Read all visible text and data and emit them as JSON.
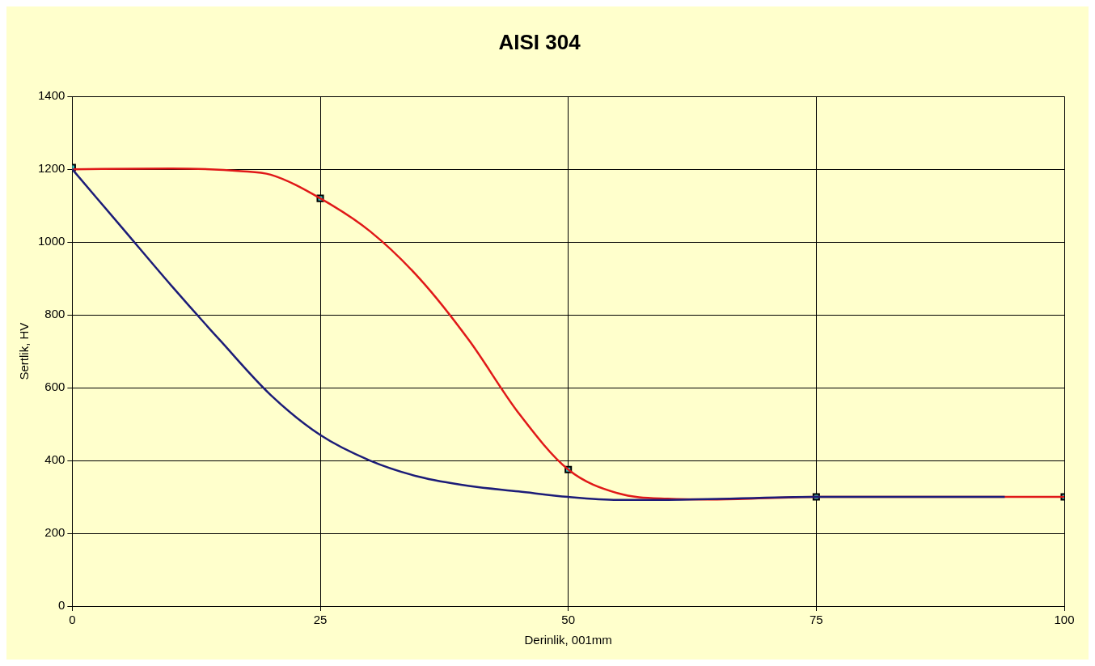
{
  "chart_data": {
    "type": "line",
    "title": "AISI 304",
    "xlabel": "Derinlik, 001mm",
    "ylabel": "Sertlik, HV",
    "xlim": [
      0,
      100
    ],
    "xticks": [
      0,
      25,
      50,
      75,
      100
    ],
    "ylim": [
      0,
      1400
    ],
    "yticks": [
      0,
      200,
      400,
      600,
      800,
      1000,
      1200,
      1400
    ],
    "grid": true,
    "legend": false,
    "marker": "none",
    "series": [
      {
        "type": "line",
        "color": "#1c1c78",
        "x": [
          0,
          5,
          10,
          15,
          20,
          25,
          30,
          35,
          40,
          45,
          50,
          55,
          60,
          75,
          94
        ],
        "values": [
          1200,
          1040,
          880,
          727,
          580,
          470,
          400,
          355,
          330,
          315,
          300,
          292,
          292,
          300,
          300
        ]
      },
      {
        "type": "line",
        "color": "#e01818",
        "x": [
          0,
          10,
          17,
          20,
          25,
          30,
          35,
          40,
          45,
          50,
          55,
          60,
          65,
          75,
          100
        ],
        "values": [
          1200,
          1202,
          1195,
          1185,
          1120,
          1030,
          900,
          730,
          530,
          375,
          310,
          295,
          293,
          300,
          300
        ]
      },
      {
        "type": "scatter",
        "color": "#33cccc",
        "marker": "square",
        "x": [
          0,
          25,
          50,
          75,
          100
        ],
        "values": [
          1205,
          1120,
          375,
          300,
          300
        ]
      }
    ]
  }
}
